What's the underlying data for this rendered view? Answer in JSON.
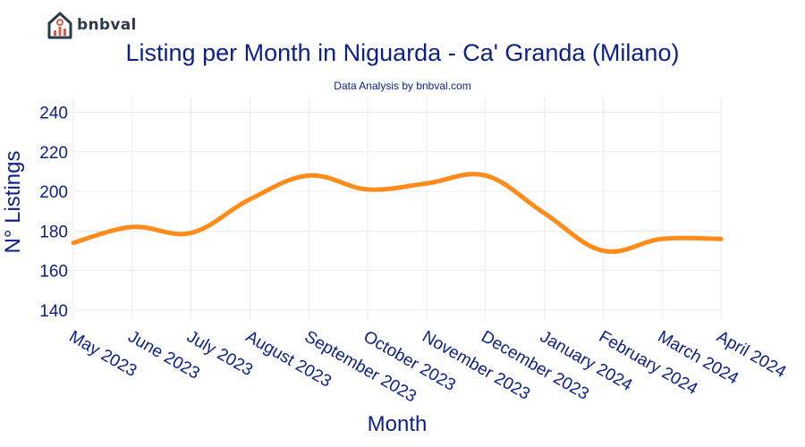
{
  "brand": {
    "name": "bnbval"
  },
  "colors": {
    "line": "#FF8C1A",
    "text": "#0b1f8c",
    "grid": "#ececec",
    "logo": "#2b3a4a",
    "logo_accent": "#e0594a"
  },
  "chart_data": {
    "type": "line",
    "title": "Listing per Month in Niguarda - Ca' Granda (Milano)",
    "subtitle": "Data Analysis by bnbval.com",
    "xlabel": "Month",
    "ylabel": "N° Listings",
    "categories": [
      "May 2023",
      "June 2023",
      "July 2023",
      "August 2023",
      "September 2023",
      "October 2023",
      "November 2023",
      "December 2023",
      "January 2024",
      "February 2024",
      "March 2024",
      "April 2024"
    ],
    "series": [
      {
        "values": [
          174,
          182,
          179,
          196,
          208,
          201,
          204,
          208,
          189,
          170,
          176,
          176
        ]
      }
    ],
    "ylim": [
      135,
      247
    ],
    "yticks": [
      140,
      160,
      180,
      200,
      220,
      240
    ],
    "grid": true,
    "smooth": true
  }
}
